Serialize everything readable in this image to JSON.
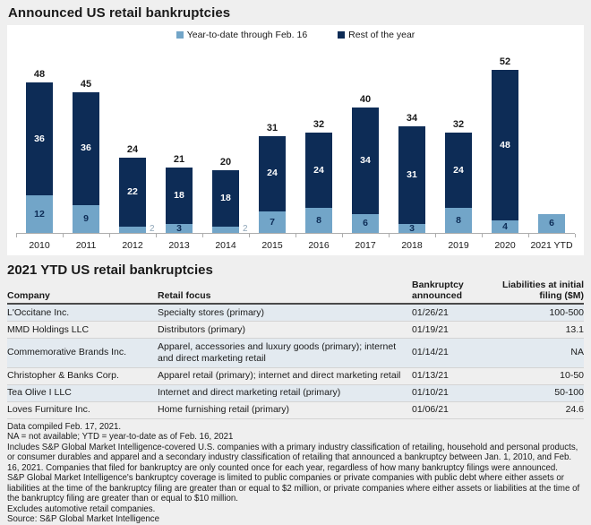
{
  "header": {
    "title": "Announced US retail bankruptcies"
  },
  "colors": {
    "page_bg": "#efefef",
    "card_bg": "#ffffff",
    "ytd_blue": "#72a5c8",
    "rest_navy": "#0d2c56",
    "alt_row": "#e3eaf0",
    "outside_label": "#8fa6b8"
  },
  "chart_data": {
    "type": "bar",
    "stacked": true,
    "title": "Announced US retail bankruptcies",
    "categories": [
      "2010",
      "2011",
      "2012",
      "2013",
      "2014",
      "2015",
      "2016",
      "2017",
      "2018",
      "2019",
      "2020",
      "2021 YTD"
    ],
    "series": [
      {
        "name": "Year-to-date through Feb. 16",
        "color": "#72a5c8",
        "values": [
          12,
          9,
          2,
          3,
          2,
          7,
          8,
          6,
          3,
          8,
          4,
          6
        ]
      },
      {
        "name": "Rest of the year",
        "color": "#0d2c56",
        "values": [
          36,
          36,
          22,
          18,
          18,
          24,
          24,
          34,
          31,
          24,
          48,
          null
        ]
      }
    ],
    "totals": [
      48,
      45,
      24,
      21,
      20,
      31,
      32,
      40,
      34,
      32,
      52,
      null
    ],
    "ytd_label_outside": [
      false,
      false,
      true,
      false,
      true,
      false,
      false,
      false,
      false,
      false,
      false,
      false
    ],
    "xlabel": "",
    "ylabel": "",
    "ylim": [
      0,
      52
    ],
    "grid": false,
    "legend_position": "top"
  },
  "legend": [
    {
      "label": "Year-to-date through Feb. 16",
      "color": "#72a5c8"
    },
    {
      "label": "Rest of the year",
      "color": "#0d2c56"
    }
  ],
  "table": {
    "title": "2021 YTD US retail bankruptcies",
    "headers": [
      "Company",
      "Retail focus",
      "Bankruptcy announced",
      "Liabilities at initial filing ($M)"
    ],
    "rows": [
      {
        "company": "L'Occitane Inc.",
        "focus": "Specialty stores (primary)",
        "date": "01/26/21",
        "liabilities": "100-500"
      },
      {
        "company": "MMD Holdings LLC",
        "focus": "Distributors (primary)",
        "date": "01/19/21",
        "liabilities": "13.1"
      },
      {
        "company": "Commemorative Brands Inc.",
        "focus": "Apparel, accessories and luxury goods (primary); internet and direct marketing retail",
        "date": "01/14/21",
        "liabilities": "NA"
      },
      {
        "company": "Christopher & Banks Corp.",
        "focus": "Apparel retail (primary); internet and direct marketing retail",
        "date": "01/13/21",
        "liabilities": "10-50"
      },
      {
        "company": "Tea Olive I LLC",
        "focus": "Internet and direct marketing retail (primary)",
        "date": "01/10/21",
        "liabilities": "50-100"
      },
      {
        "company": "Loves Furniture Inc.",
        "focus": "Home furnishing retail (primary)",
        "date": "01/06/21",
        "liabilities": "24.6"
      }
    ]
  },
  "footnotes": [
    "Data compiled Feb. 17, 2021.",
    "NA = not available; YTD = year-to-date as of Feb. 16, 2021",
    "Includes S&P Global Market Intelligence-covered U.S. companies with a primary industry classification of retailing, household and personal products, or consumer durables and apparel and a secondary industry classification of retailing that announced a bankruptcy between Jan. 1, 2010, and Feb. 16, 2021. Companies that filed for bankruptcy are only counted once for each year, regardless of how many bankruptcy filings were announced.",
    "S&P Global Market Intelligence's bankruptcy coverage is limited to public companies or private companies with public debt where either assets or liabilities at the time of the bankruptcy filing are greater than or equal to $2 million, or private companies where either assets or liabilities at the time of the bankruptcy filing are greater than or equal to $10 million.",
    "Excludes automotive retail companies.",
    "Source: S&P Global Market Intelligence"
  ]
}
